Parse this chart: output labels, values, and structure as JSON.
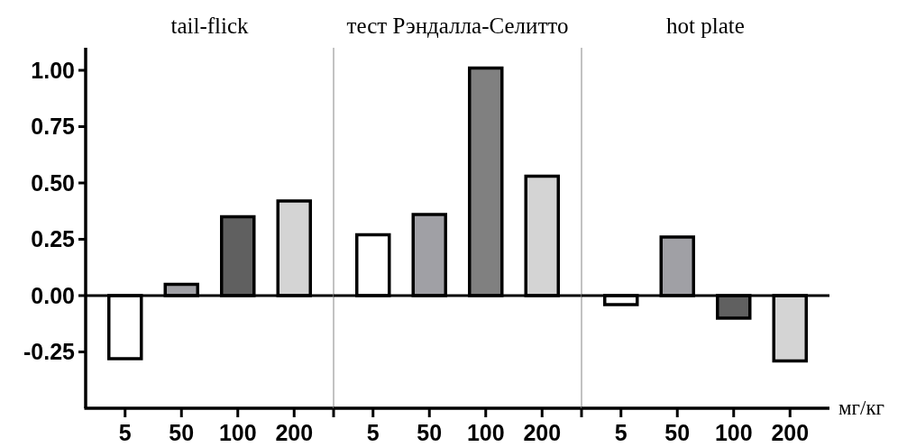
{
  "chart_data": [
    {
      "type": "bar",
      "title": "tail-flick",
      "categories": [
        "5",
        "50",
        "100",
        "200"
      ],
      "values": [
        -0.28,
        0.05,
        0.35,
        0.42
      ],
      "colors": [
        "#ffffff",
        "#a0a0a5",
        "#606060",
        "#d4d4d4"
      ],
      "ylim": [
        -0.5,
        1.1
      ],
      "yticks": [
        {
          "value": -0.25,
          "label": "-0.25"
        },
        {
          "value": 0,
          "label": "0.00"
        },
        {
          "value": 0.25,
          "label": "0.25"
        },
        {
          "value": 0.5,
          "label": "0.50"
        },
        {
          "value": 0.75,
          "label": "0.75"
        },
        {
          "value": 1,
          "label": "1.00"
        }
      ]
    },
    {
      "type": "bar",
      "title": "тест Рэндалла-Селитто",
      "categories": [
        "5",
        "50",
        "100",
        "200"
      ],
      "values": [
        0.27,
        0.36,
        1.01,
        0.53
      ],
      "colors": [
        "#ffffff",
        "#a0a0a5",
        "#808080",
        "#d4d4d4"
      ],
      "ylim": [
        -0.5,
        1.1
      ],
      "tick_labels": "x"
    },
    {
      "type": "bar",
      "title": "hot plate",
      "xlabel": "мг/кг",
      "categories": [
        "5",
        "50",
        "100",
        "200"
      ],
      "values": [
        -0.04,
        0.26,
        -0.1,
        -0.29
      ],
      "colors": [
        "#ffffff",
        "#a0a0a5",
        "#606060",
        "#d4d4d4"
      ],
      "ylim": [
        -0.5,
        1.1
      ],
      "tick_labels": "x"
    }
  ]
}
